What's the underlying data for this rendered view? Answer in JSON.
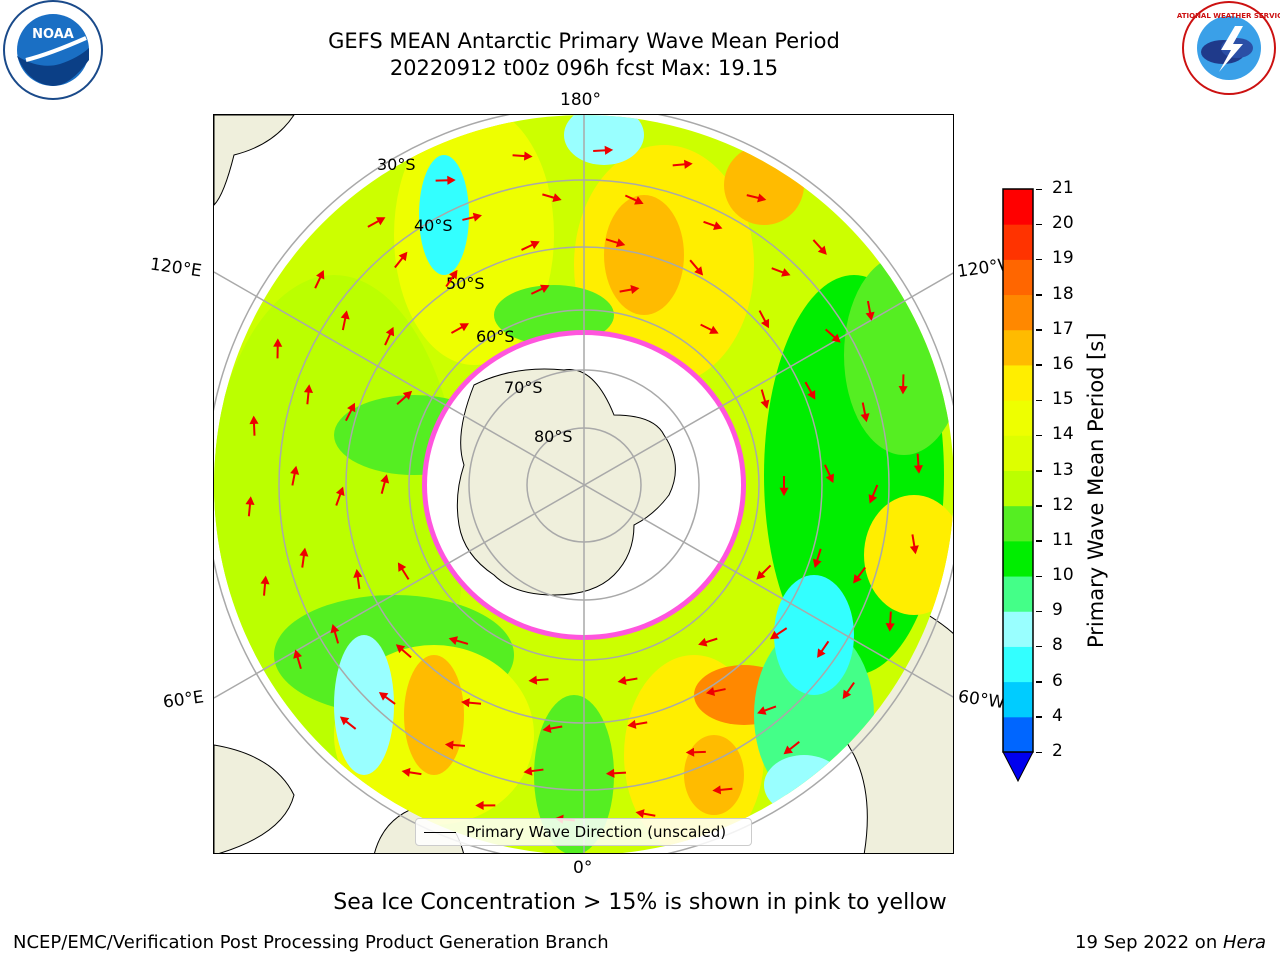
{
  "title_line1": "GEFS MEAN Antarctic Primary Wave Mean Period",
  "title_line2": "20220912 t00z 096h fcst   Max: 19.15",
  "logos": {
    "noaa_text": "NOAA",
    "nws_text": "NATIONAL WEATHER SERVICE"
  },
  "map": {
    "projection": "south-polar-stereographic",
    "lon_labels": {
      "top": "180°",
      "bottom": "0°",
      "upper_left": "120°E",
      "lower_left": "60°E",
      "upper_right": "120°W",
      "lower_right": "60°W"
    },
    "lat_labels": [
      "30°S",
      "40°S",
      "50°S",
      "60°S",
      "70°S",
      "80°S"
    ],
    "legend_label": "Primary Wave Direction (unscaled)"
  },
  "colorbar": {
    "label": "Primary Wave Mean Period [s]",
    "ticks": [
      "2",
      "4",
      "6",
      "8",
      "9",
      "10",
      "11",
      "12",
      "13",
      "14",
      "15",
      "16",
      "17",
      "18",
      "19",
      "20",
      "21"
    ],
    "colors": [
      "#0066ff",
      "#00ccff",
      "#33ffff",
      "#99ffff",
      "#44ff88",
      "#00ee00",
      "#55ee22",
      "#bbff00",
      "#ddff00",
      "#eeff00",
      "#ffee00",
      "#ffbb00",
      "#ff8800",
      "#ff6600",
      "#ff3300",
      "#ff0000"
    ],
    "extend_color": "#0000ee"
  },
  "bottom_note": "Sea Ice Concentration > 15% is shown in pink to yellow",
  "footer_left": "NCEP/EMC/Verification Post Processing Product Generation Branch",
  "footer_right_prefix": "19 Sep 2022 on ",
  "footer_right_host": "Hera"
}
